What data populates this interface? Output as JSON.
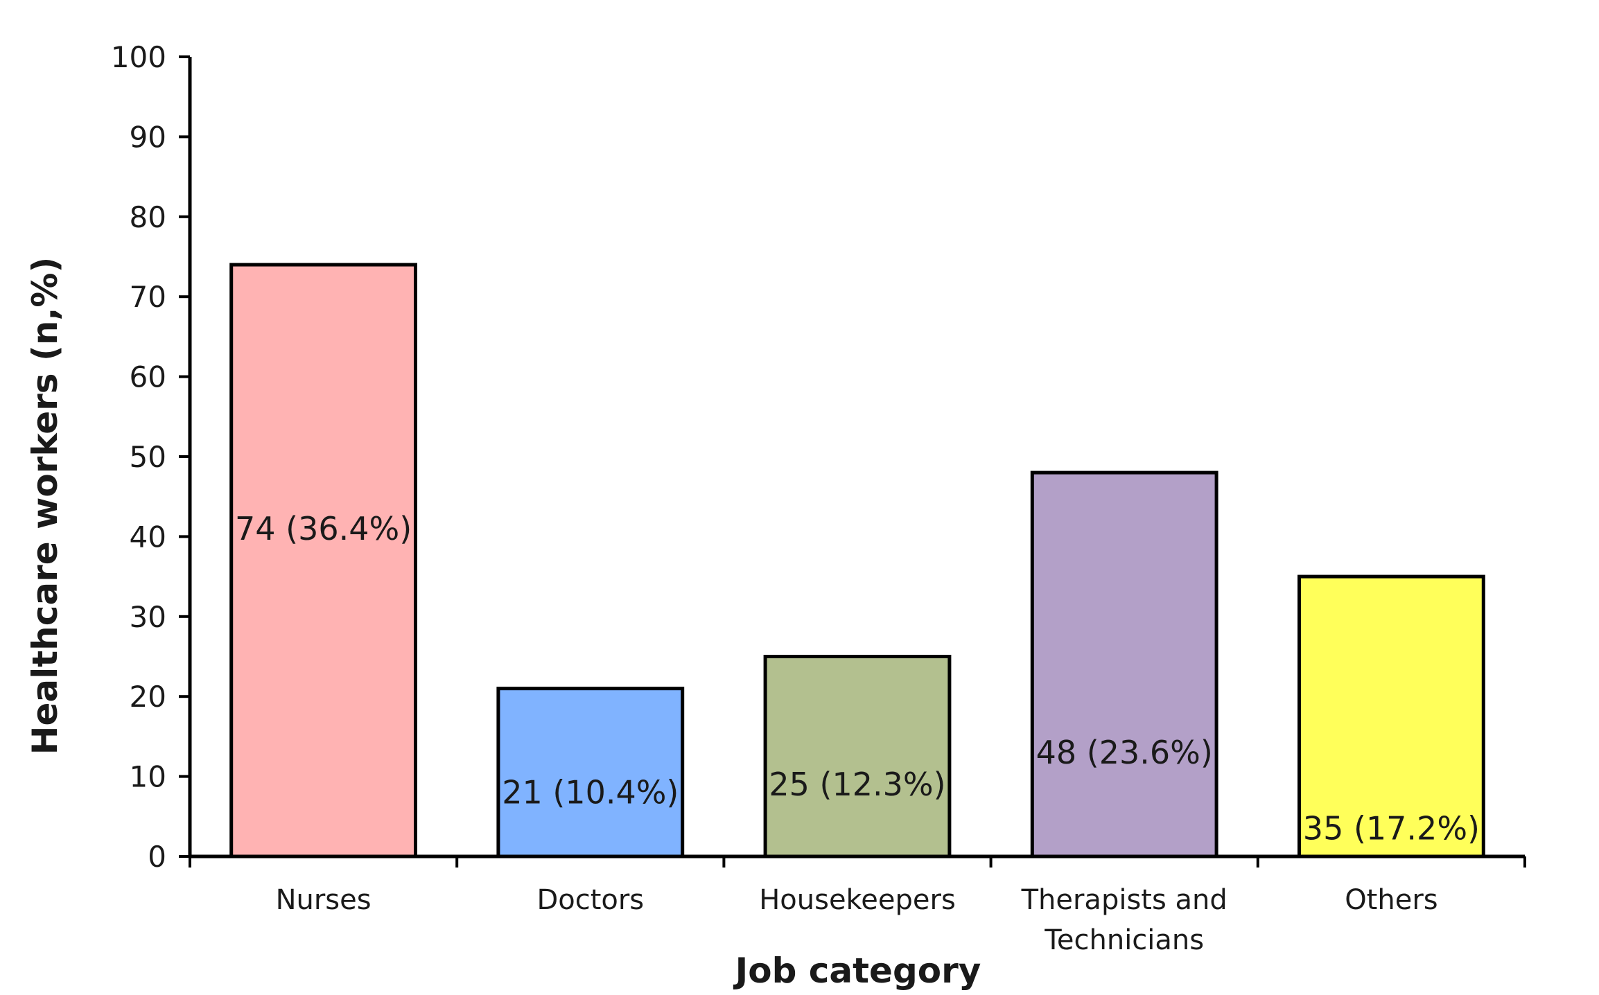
{
  "chart_data": {
    "type": "bar",
    "title": "",
    "xlabel": "Job category",
    "ylabel": "Healthcare workers (n,%)",
    "ylim": [
      0,
      100
    ],
    "yticks": [
      0,
      10,
      20,
      30,
      40,
      50,
      60,
      70,
      80,
      90,
      100
    ],
    "grid": false,
    "categories": [
      [
        "Nurses"
      ],
      [
        "Doctors"
      ],
      [
        "Housekeepers"
      ],
      [
        "Therapists and",
        "Technicians"
      ],
      [
        "Others"
      ]
    ],
    "values": [
      74,
      21,
      25,
      48,
      35
    ],
    "data_labels": [
      "74 (36.4%)",
      "21 (10.4%)",
      "25 (12.3%)",
      "48 (23.6%)",
      "35 (17.2%)"
    ],
    "label_values": [
      41,
      8,
      9,
      13,
      3.5
    ],
    "colors": [
      "#ffb3b3",
      "#80b3ff",
      "#b3c08f",
      "#b3a0c8",
      "#ffff5a"
    ]
  }
}
